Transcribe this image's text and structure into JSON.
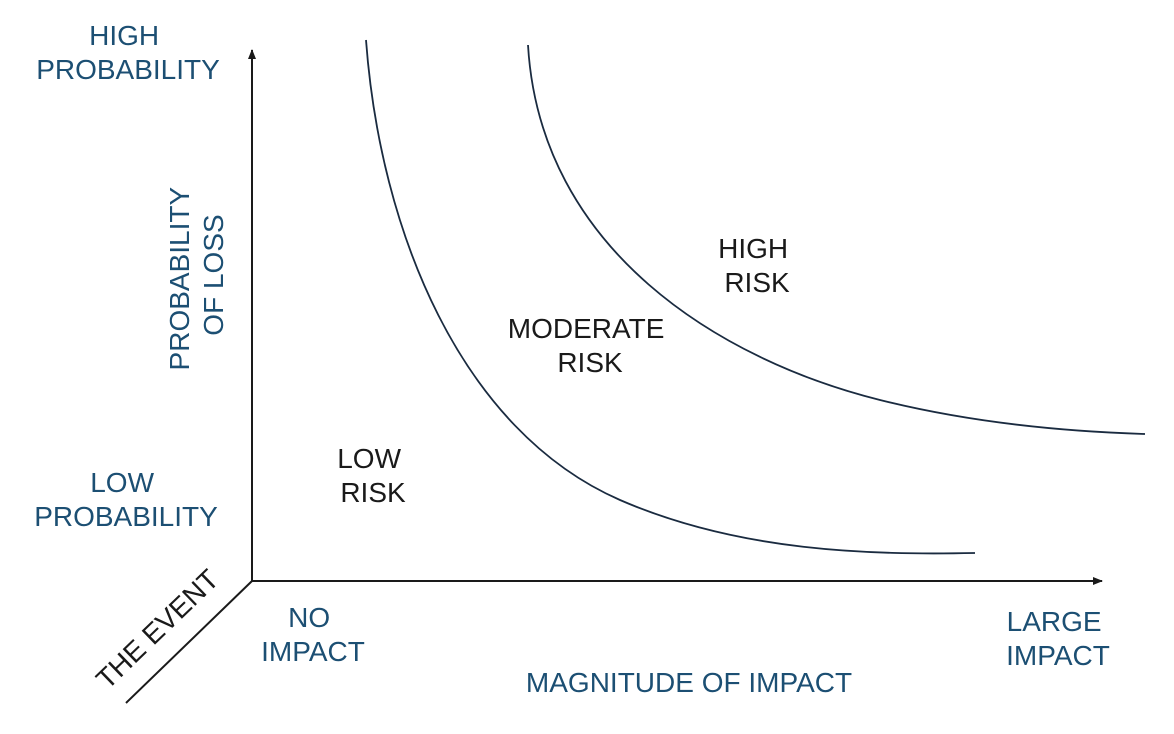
{
  "axes": {
    "y_top": [
      "HIGH",
      "PROBABILITY"
    ],
    "y_bottom": [
      "LOW",
      "PROBABILITY"
    ],
    "y_title": [
      "PROBABILITY",
      "OF LOSS"
    ],
    "x_left": [
      "NO",
      "IMPACT"
    ],
    "x_right": [
      "LARGE",
      "IMPACT"
    ],
    "x_title": "MAGNITUDE OF IMPACT",
    "z_title": "THE EVENT"
  },
  "regions": {
    "low": [
      "LOW",
      "RISK"
    ],
    "moderate": [
      "MODERATE",
      "RISK"
    ],
    "high": [
      "HIGH",
      "RISK"
    ]
  },
  "colors": {
    "axis_label": "#1c4f73",
    "region_label": "#1a1a1a",
    "lines": "#1a2b40"
  }
}
